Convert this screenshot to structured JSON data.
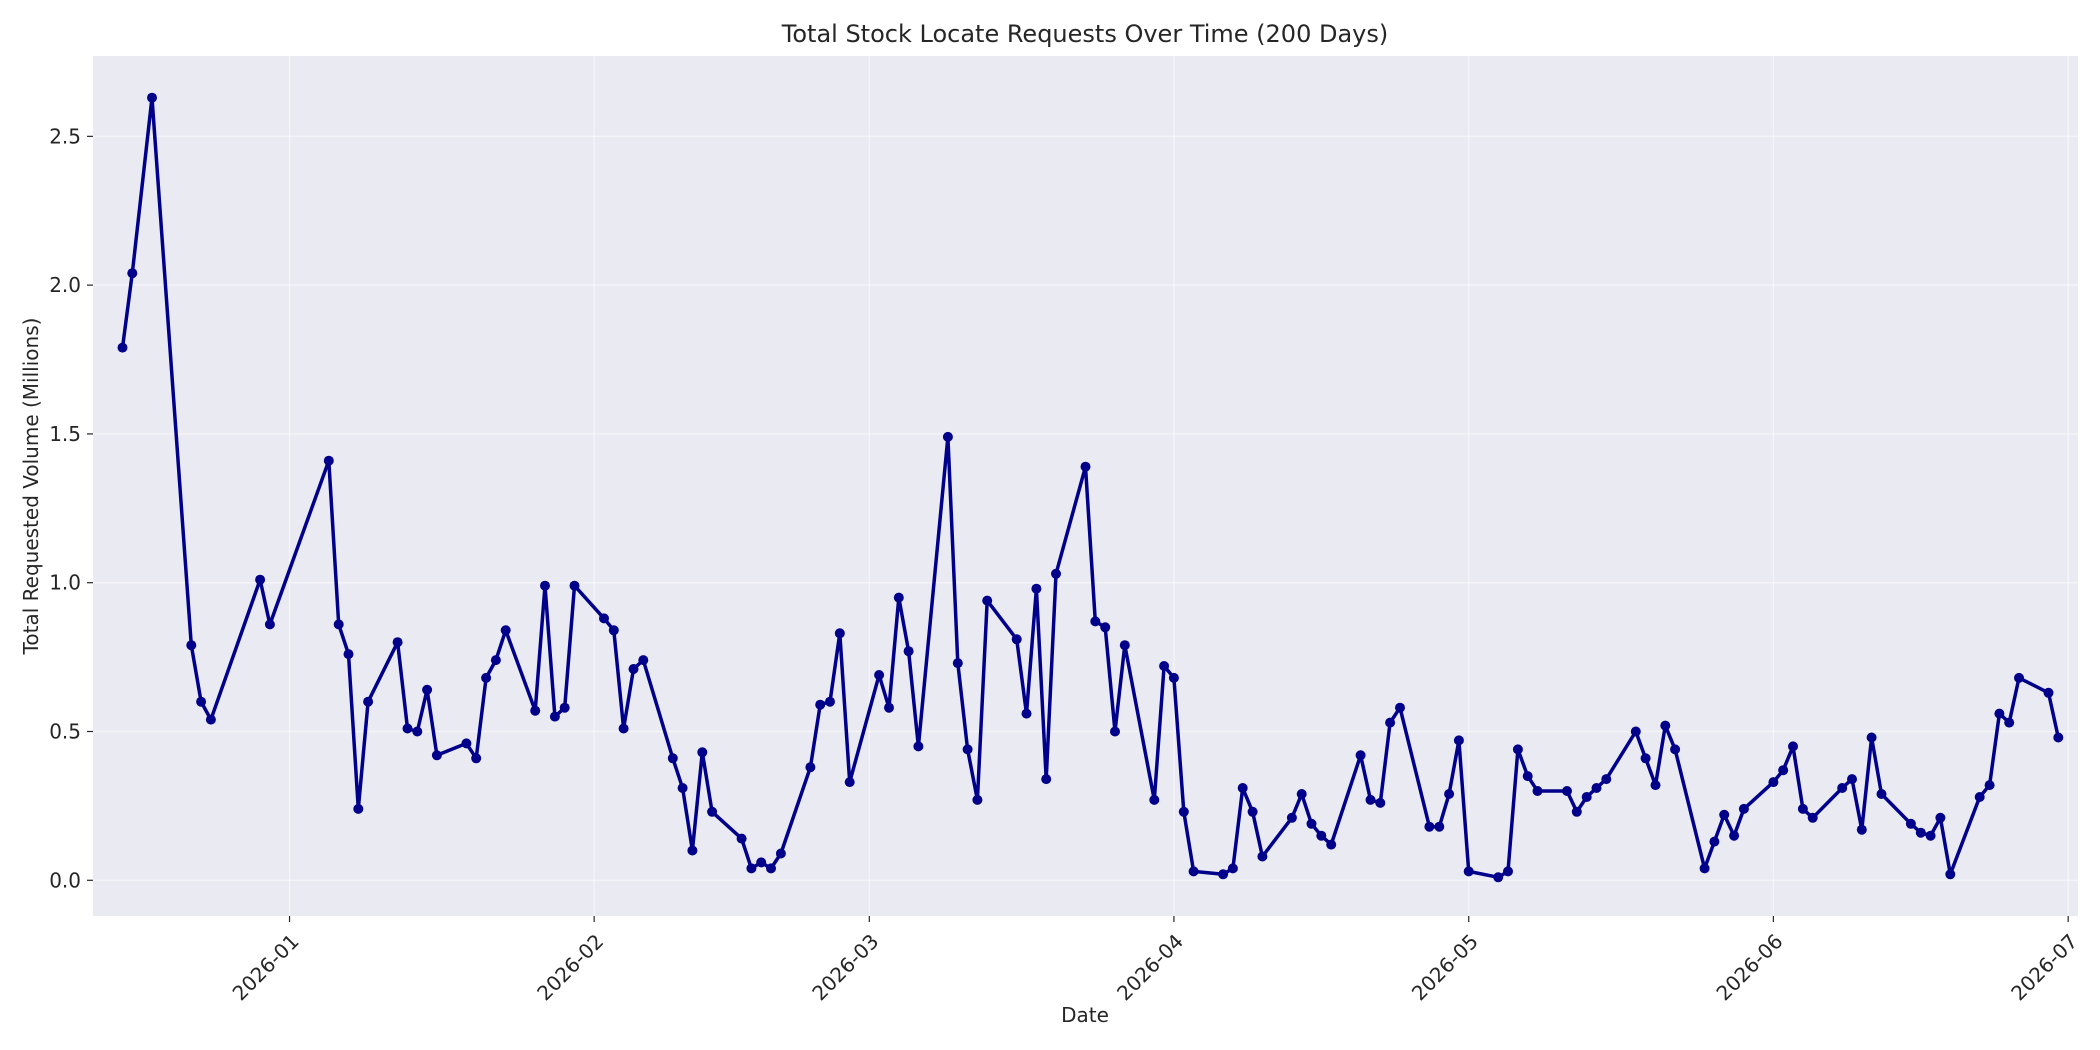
{
  "chart_data": {
    "type": "line",
    "title": "Total Stock Locate Requests Over Time (200 Days)",
    "xlabel": "Date",
    "ylabel": "Total Requested Volume (Millions)",
    "xlim": [
      "2025-12-12",
      "2026-07-02"
    ],
    "ylim": [
      -0.12,
      2.77
    ],
    "yticks": [
      0.0,
      0.5,
      1.0,
      1.5,
      2.0,
      2.5
    ],
    "ytick_labels": [
      "0.0",
      "0.5",
      "1.0",
      "1.5",
      "2.0",
      "2.5"
    ],
    "xticks": [
      "2026-01-01",
      "2026-02-01",
      "2026-03-01",
      "2026-04-01",
      "2026-05-01",
      "2026-06-01",
      "2026-07-01"
    ],
    "xtick_labels": [
      "2026-01",
      "2026-02",
      "2026-03",
      "2026-04",
      "2026-05",
      "2026-06",
      "2026-07"
    ],
    "grid": true,
    "colors": {
      "line": "#00008b",
      "plot_background": "#eaeaf2",
      "grid": "#ffffff"
    },
    "series": [
      {
        "x": [
          "2025-12-15",
          "2025-12-16",
          "2025-12-18",
          "2025-12-22",
          "2025-12-23",
          "2025-12-24",
          "2025-12-29",
          "2025-12-30",
          "2026-01-05",
          "2026-01-06",
          "2026-01-07",
          "2026-01-08",
          "2026-01-09",
          "2026-01-12",
          "2026-01-13",
          "2026-01-14",
          "2026-01-15",
          "2026-01-16",
          "2026-01-19",
          "2026-01-20",
          "2026-01-21",
          "2026-01-22",
          "2026-01-23",
          "2026-01-26",
          "2026-01-27",
          "2026-01-28",
          "2026-01-29",
          "2026-01-30",
          "2026-02-02",
          "2026-02-03",
          "2026-02-04",
          "2026-02-05",
          "2026-02-06",
          "2026-02-09",
          "2026-02-10",
          "2026-02-11",
          "2026-02-12",
          "2026-02-13",
          "2026-02-16",
          "2026-02-17",
          "2026-02-18",
          "2026-02-19",
          "2026-02-20",
          "2026-02-23",
          "2026-02-24",
          "2026-02-25",
          "2026-02-26",
          "2026-02-27",
          "2026-03-02",
          "2026-03-03",
          "2026-03-04",
          "2026-03-05",
          "2026-03-06",
          "2026-03-09",
          "2026-03-10",
          "2026-03-11",
          "2026-03-12",
          "2026-03-13",
          "2026-03-16",
          "2026-03-17",
          "2026-03-18",
          "2026-03-19",
          "2026-03-20",
          "2026-03-23",
          "2026-03-24",
          "2026-03-25",
          "2026-03-26",
          "2026-03-27",
          "2026-03-30",
          "2026-03-31",
          "2026-04-01",
          "2026-04-02",
          "2026-04-03",
          "2026-04-06",
          "2026-04-07",
          "2026-04-08",
          "2026-04-09",
          "2026-04-10",
          "2026-04-13",
          "2026-04-14",
          "2026-04-15",
          "2026-04-16",
          "2026-04-17",
          "2026-04-20",
          "2026-04-21",
          "2026-04-22",
          "2026-04-23",
          "2026-04-24",
          "2026-04-27",
          "2026-04-28",
          "2026-04-29",
          "2026-04-30",
          "2026-05-01",
          "2026-05-04",
          "2026-05-05",
          "2026-05-06",
          "2026-05-07",
          "2026-05-08",
          "2026-05-11",
          "2026-05-12",
          "2026-05-13",
          "2026-05-14",
          "2026-05-15",
          "2026-05-18",
          "2026-05-19",
          "2026-05-20",
          "2026-05-21",
          "2026-05-22",
          "2026-05-25",
          "2026-05-26",
          "2026-05-27",
          "2026-05-28",
          "2026-05-29",
          "2026-06-01",
          "2026-06-02",
          "2026-06-03",
          "2026-06-04",
          "2026-06-05",
          "2026-06-08",
          "2026-06-09",
          "2026-06-10",
          "2026-06-11",
          "2026-06-12",
          "2026-06-15",
          "2026-06-16",
          "2026-06-17",
          "2026-06-18",
          "2026-06-19",
          "2026-06-22",
          "2026-06-23",
          "2026-06-24",
          "2026-06-25",
          "2026-06-26",
          "2026-06-29",
          "2026-06-30"
        ],
        "values": [
          1.79,
          2.04,
          2.63,
          0.79,
          0.6,
          0.54,
          1.01,
          0.86,
          1.41,
          0.86,
          0.76,
          0.24,
          0.6,
          0.8,
          0.51,
          0.5,
          0.64,
          0.42,
          0.46,
          0.41,
          0.68,
          0.74,
          0.84,
          0.57,
          0.99,
          0.55,
          0.58,
          0.99,
          0.88,
          0.84,
          0.51,
          0.71,
          0.74,
          0.41,
          0.31,
          0.1,
          0.43,
          0.23,
          0.14,
          0.04,
          0.06,
          0.04,
          0.09,
          0.38,
          0.59,
          0.6,
          0.83,
          0.33,
          0.69,
          0.58,
          0.95,
          0.77,
          0.45,
          1.49,
          0.73,
          0.44,
          0.27,
          0.94,
          0.81,
          0.56,
          0.98,
          0.34,
          1.03,
          1.39,
          0.87,
          0.85,
          0.5,
          0.79,
          0.27,
          0.72,
          0.68,
          0.23,
          0.03,
          0.02,
          0.04,
          0.31,
          0.23,
          0.08,
          0.21,
          0.29,
          0.19,
          0.15,
          0.12,
          0.42,
          0.27,
          0.26,
          0.53,
          0.58,
          0.18,
          0.18,
          0.29,
          0.47,
          0.03,
          0.01,
          0.03,
          0.44,
          0.35,
          0.3,
          0.3,
          0.23,
          0.28,
          0.31,
          0.34,
          0.5,
          0.41,
          0.32,
          0.52,
          0.44,
          0.04,
          0.13,
          0.22,
          0.15,
          0.24,
          0.33,
          0.37,
          0.45,
          0.24,
          0.21,
          0.31,
          0.34,
          0.17,
          0.48,
          0.29,
          0.19,
          0.16,
          0.15,
          0.21,
          0.02,
          0.28,
          0.32,
          0.56,
          0.53,
          0.68,
          0.63,
          0.48
        ]
      }
    ]
  }
}
